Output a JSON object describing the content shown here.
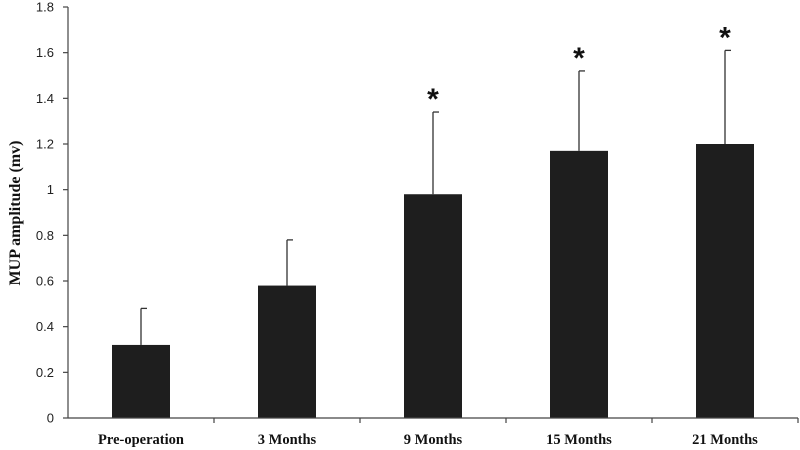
{
  "chart_data": {
    "type": "bar",
    "title": "",
    "xlabel": "",
    "ylabel": "MUP amplitude (mv)",
    "ylim": [
      0,
      1.8
    ],
    "yticks": [
      "0",
      "0.2",
      "0.4",
      "0.6",
      "0.8",
      "1",
      "1.2",
      "1.4",
      "1.6",
      "1.8"
    ],
    "categories": [
      "Pre-operation",
      "3 Months",
      "9 Months",
      "15 Months",
      "21 Months"
    ],
    "values": [
      0.32,
      0.58,
      0.98,
      1.17,
      1.2
    ],
    "error_upper": [
      0.16,
      0.2,
      0.36,
      0.35,
      0.41
    ],
    "significance": [
      "",
      "",
      "*",
      "*",
      "*"
    ],
    "grid": false,
    "legend": "none",
    "colors": {
      "bar": "#1e1e1e",
      "axis": "#444444"
    }
  }
}
